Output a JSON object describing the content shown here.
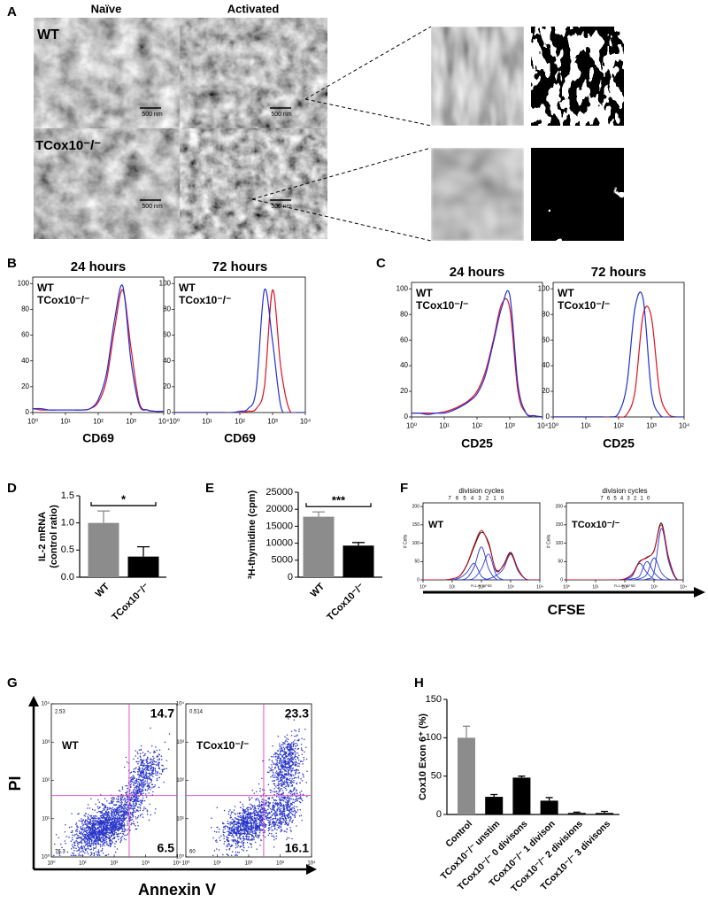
{
  "panel_labels": [
    "A",
    "B",
    "C",
    "D",
    "E",
    "F",
    "G",
    "H"
  ],
  "figure_a": {
    "columns": [
      "Naïve",
      "Activated"
    ],
    "rows": [
      "WT",
      "TCox10⁻/⁻"
    ],
    "scale_bars": [
      "500 nm",
      "500 nm",
      "500 nm",
      "500 nm"
    ]
  },
  "figure_f": {
    "xlabel": "CFSE"
  },
  "figure_g": {
    "xlabel": "Annexin V",
    "ylabel": "PI"
  },
  "chart_data": [
    {
      "type": "line",
      "xscale": "log",
      "title": "24 hours",
      "xlabel": "CD69",
      "legend": "top-left",
      "x": [
        1,
        1.78,
        3.16,
        5.62,
        10,
        17.8,
        31.6,
        56.2,
        100,
        178,
        316,
        562,
        1000,
        1780,
        3160,
        5620,
        10000
      ],
      "series": [
        {
          "name": "WT",
          "color": "#e0101e",
          "values": [
            3,
            2,
            2,
            2,
            2,
            2,
            2,
            3,
            8,
            25,
            65,
            95,
            50,
            8,
            2,
            1,
            1
          ]
        },
        {
          "name": "TCox10⁻/⁻",
          "color": "#2030d8",
          "values": [
            3,
            3,
            2,
            2,
            2,
            2,
            2,
            3,
            10,
            30,
            72,
            98,
            40,
            6,
            2,
            1,
            1
          ]
        }
      ],
      "xlim": [
        1,
        10000
      ],
      "ylim": [
        0,
        105
      ],
      "yticks": [
        0,
        20,
        40,
        60,
        80,
        100
      ],
      "xticks": [
        {
          "value": 1,
          "label": "10⁰"
        },
        {
          "value": 10,
          "label": "10¹"
        },
        {
          "value": 100,
          "label": "10²"
        },
        {
          "value": 1000,
          "label": "10³"
        },
        {
          "value": 10000,
          "label": "10⁴"
        }
      ]
    },
    {
      "type": "line",
      "xscale": "log",
      "title": "72 hours",
      "xlabel": "CD69",
      "legend": "top-left",
      "x": [
        1,
        1.78,
        3.16,
        5.62,
        10,
        17.8,
        31.6,
        56.2,
        100,
        178,
        316,
        562,
        1000,
        1780,
        3160,
        5620,
        10000
      ],
      "series": [
        {
          "name": "WT",
          "color": "#e0101e",
          "values": [
            0,
            0,
            0,
            0,
            0,
            0,
            0,
            0,
            0,
            1,
            3,
            20,
            95,
            35,
            3,
            0,
            0
          ]
        },
        {
          "name": "TCox10⁻/⁻",
          "color": "#2030d8",
          "values": [
            0,
            0,
            0,
            0,
            0,
            0,
            0,
            0,
            1,
            3,
            18,
            95,
            55,
            5,
            0,
            0,
            0
          ]
        }
      ],
      "xlim": [
        1,
        10000
      ],
      "ylim": [
        0,
        105
      ],
      "yticks": [
        0,
        20,
        40,
        60,
        80,
        100
      ],
      "xticks": [
        {
          "value": 1,
          "label": "10⁰"
        },
        {
          "value": 10,
          "label": "10¹"
        },
        {
          "value": 100,
          "label": "10²"
        },
        {
          "value": 1000,
          "label": "10³"
        },
        {
          "value": 10000,
          "label": "10⁴"
        }
      ]
    },
    {
      "type": "line",
      "xscale": "log",
      "title": "24 hours",
      "xlabel": "CD25",
      "legend": "top-left",
      "x": [
        1,
        1.78,
        3.16,
        5.62,
        10,
        17.8,
        31.6,
        56.2,
        100,
        178,
        316,
        562,
        1000,
        1780,
        3160,
        5620,
        10000
      ],
      "series": [
        {
          "name": "WT",
          "color": "#e0101e",
          "values": [
            3,
            3,
            3,
            3,
            4,
            6,
            9,
            13,
            20,
            35,
            60,
            88,
            85,
            20,
            3,
            1,
            0
          ]
        },
        {
          "name": "TCox10⁻/⁻",
          "color": "#2030d8",
          "values": [
            3,
            3,
            2,
            3,
            3,
            5,
            8,
            12,
            18,
            32,
            58,
            85,
            95,
            25,
            3,
            1,
            0
          ]
        }
      ],
      "xlim": [
        1,
        10000
      ],
      "ylim": [
        0,
        105
      ],
      "yticks": [
        0,
        20,
        40,
        60,
        80,
        100
      ],
      "xticks": [
        {
          "value": 1,
          "label": "10⁰"
        },
        {
          "value": 10,
          "label": "10¹"
        },
        {
          "value": 100,
          "label": "10²"
        },
        {
          "value": 1000,
          "label": "10³"
        },
        {
          "value": 10000,
          "label": "10⁴"
        }
      ]
    },
    {
      "type": "line",
      "xscale": "log",
      "title": "72 hours",
      "xlabel": "CD25",
      "legend": "top-left",
      "x": [
        1,
        1.78,
        3.16,
        5.62,
        10,
        17.8,
        31.6,
        56.2,
        100,
        178,
        316,
        562,
        1000,
        1780,
        3160,
        5620,
        10000
      ],
      "series": [
        {
          "name": "WT",
          "color": "#e0101e",
          "values": [
            0,
            0,
            0,
            0,
            0,
            0,
            0,
            0,
            0,
            2,
            20,
            80,
            78,
            20,
            3,
            0,
            0
          ]
        },
        {
          "name": "TCox10⁻/⁻",
          "color": "#2030d8",
          "values": [
            0,
            0,
            0,
            0,
            0,
            0,
            0,
            0,
            3,
            25,
            85,
            92,
            20,
            2,
            0,
            0,
            0
          ]
        }
      ],
      "xlim": [
        1,
        10000
      ],
      "ylim": [
        0,
        105
      ],
      "yticks": [
        0,
        20,
        40,
        60,
        80,
        100
      ],
      "xticks": [
        {
          "value": 1,
          "label": "10⁰"
        },
        {
          "value": 10,
          "label": "10¹"
        },
        {
          "value": 100,
          "label": "10²"
        },
        {
          "value": 1000,
          "label": "10³"
        },
        {
          "value": 10000,
          "label": "10⁴"
        }
      ]
    },
    {
      "type": "bar",
      "ylabel": [
        "IL-2 mRNA",
        "(control ratio)"
      ],
      "categories": [
        "WT",
        "TCox10⁻/⁻"
      ],
      "values": [
        1.0,
        0.38
      ],
      "errors": [
        0.22,
        0.18
      ],
      "colors": [
        "#8c8c8c",
        "#000000"
      ],
      "significance": "*",
      "ylim": [
        0,
        1.5
      ],
      "yticks": [
        {
          "value": 0,
          "label": "0.0"
        },
        {
          "value": 0.5,
          "label": "0.5"
        },
        {
          "value": 1,
          "label": "1.0"
        },
        {
          "value": 1.5,
          "label": "1.5"
        }
      ]
    },
    {
      "type": "bar",
      "ylabel": [
        "³H-thymidine (cpm)"
      ],
      "categories": [
        "WT",
        "TCox10⁻/⁻"
      ],
      "values": [
        17800,
        9300
      ],
      "errors": [
        1400,
        900
      ],
      "colors": [
        "#8c8c8c",
        "#000000"
      ],
      "significance": "***",
      "ylim": [
        0,
        25000
      ],
      "yticks": [
        0,
        5000,
        10000,
        15000,
        20000,
        25000
      ]
    },
    {
      "type": "line",
      "xscale": "log",
      "title": "division cycles",
      "label": "WT",
      "ylabel": "# Cells",
      "xlabel": "FL1-H: CFSE",
      "division_labels": [
        "7",
        "6",
        "5",
        "4",
        "3",
        "2",
        "1",
        "0"
      ],
      "x": [
        1,
        1.78,
        3.16,
        5.62,
        10,
        17.8,
        31.6,
        56.2,
        100,
        178,
        316,
        562,
        1000,
        1780,
        3160,
        5620,
        10000
      ],
      "series": [
        {
          "color": "#2a3ad8",
          "values": [
            0,
            0,
            0,
            0,
            0,
            5,
            20,
            45,
            10,
            0,
            0,
            0,
            0,
            0,
            0,
            0,
            0
          ]
        },
        {
          "color": "#2a3ad8",
          "values": [
            0,
            0,
            0,
            0,
            0,
            0,
            5,
            35,
            90,
            30,
            2,
            0,
            0,
            0,
            0,
            0,
            0
          ]
        },
        {
          "color": "#2a3ad8",
          "values": [
            0,
            0,
            0,
            0,
            0,
            0,
            0,
            5,
            30,
            70,
            15,
            0,
            0,
            0,
            0,
            0,
            0
          ]
        },
        {
          "color": "#2a3ad8",
          "values": [
            0,
            0,
            0,
            0,
            0,
            0,
            0,
            0,
            0,
            3,
            12,
            30,
            70,
            25,
            3,
            0,
            0
          ]
        },
        {
          "color": "#000000",
          "values": [
            0,
            0,
            0,
            0,
            3,
            10,
            40,
            90,
            130,
            100,
            25,
            40,
            75,
            30,
            3,
            0,
            0
          ]
        },
        {
          "color": "#e0101e",
          "values": [
            0,
            0,
            0,
            0,
            3,
            11,
            42,
            95,
            135,
            95,
            28,
            38,
            72,
            28,
            3,
            0,
            0
          ]
        }
      ],
      "xlim": [
        1,
        10000
      ],
      "ylim": [
        0,
        210
      ],
      "yticks": [
        0,
        50,
        100,
        150,
        200
      ],
      "xticks": [
        {
          "value": 1,
          "label": "10⁰"
        },
        {
          "value": 10,
          "label": "10¹"
        },
        {
          "value": 100,
          "label": "10²"
        },
        {
          "value": 1000,
          "label": "10³"
        },
        {
          "value": 10000,
          "label": "10⁴"
        }
      ]
    },
    {
      "type": "line",
      "xscale": "log",
      "title": "division cycles",
      "label": "TCox10⁻/⁻",
      "ylabel": "# Cells",
      "xlabel": "FL1-H: CFSE",
      "division_labels": [
        "7",
        "6",
        "5",
        "4",
        "3",
        "2",
        "1",
        "0"
      ],
      "x": [
        1,
        1.78,
        3.16,
        5.62,
        10,
        17.8,
        31.6,
        56.2,
        100,
        178,
        316,
        562,
        1000,
        1780,
        3160,
        5620,
        10000
      ],
      "series": [
        {
          "color": "#2a3ad8",
          "values": [
            0,
            0,
            0,
            0,
            0,
            0,
            0,
            0,
            2,
            10,
            45,
            20,
            2,
            0,
            0,
            0,
            0
          ]
        },
        {
          "color": "#2a3ad8",
          "values": [
            0,
            0,
            0,
            0,
            0,
            0,
            0,
            0,
            0,
            3,
            10,
            50,
            20,
            2,
            0,
            0,
            0
          ]
        },
        {
          "color": "#2a3ad8",
          "values": [
            0,
            0,
            0,
            0,
            0,
            0,
            0,
            0,
            0,
            0,
            3,
            15,
            60,
            20,
            2,
            0,
            0
          ]
        },
        {
          "color": "#2a3ad8",
          "values": [
            0,
            0,
            0,
            0,
            0,
            0,
            0,
            0,
            0,
            0,
            0,
            2,
            20,
            140,
            50,
            3,
            0
          ]
        },
        {
          "color": "#000000",
          "values": [
            0,
            0,
            0,
            0,
            0,
            0,
            0,
            0,
            3,
            15,
            50,
            60,
            80,
            155,
            60,
            5,
            0
          ]
        },
        {
          "color": "#e0101e",
          "values": [
            0,
            0,
            0,
            0,
            0,
            0,
            0,
            0,
            3,
            16,
            48,
            62,
            78,
            150,
            62,
            5,
            0
          ]
        }
      ],
      "xlim": [
        1,
        10000
      ],
      "ylim": [
        0,
        210
      ],
      "yticks": [
        0,
        50,
        100,
        150,
        200
      ],
      "xticks": [
        {
          "value": 1,
          "label": "10⁰"
        },
        {
          "value": 10,
          "label": "10¹"
        },
        {
          "value": 100,
          "label": "10²"
        },
        {
          "value": 1000,
          "label": "10³"
        },
        {
          "value": 10000,
          "label": "10⁴"
        }
      ]
    },
    {
      "type": "scatter",
      "label": "WT",
      "quadrant_values": [
        2.53,
        14.7,
        76.3,
        6.5
      ],
      "gate_x": 300,
      "gate_y": 40,
      "color": "#2a36c8",
      "gate_color": "#e040c0",
      "xlim": [
        1,
        10000
      ],
      "ylim": [
        1,
        10000
      ],
      "xticks": [
        {
          "value": 1,
          "label": "10⁰"
        },
        {
          "value": 10,
          "label": "10¹"
        },
        {
          "value": 100,
          "label": "10²"
        },
        {
          "value": 1000,
          "label": "10³"
        },
        {
          "value": 10000,
          "label": "10⁴"
        }
      ],
      "yticks": [
        {
          "value": 1,
          "label": "10⁰"
        },
        {
          "value": 10,
          "label": "10¹"
        },
        {
          "value": 100,
          "label": "10²"
        },
        {
          "value": 1000,
          "label": "10³"
        },
        {
          "value": 10000,
          "label": "10⁴"
        }
      ]
    },
    {
      "type": "scatter",
      "label": "TCox10⁻/⁻",
      "quadrant_values": [
        0.514,
        23.3,
        60,
        16.1
      ],
      "gate_x": 300,
      "gate_y": 40,
      "color": "#2a36c8",
      "gate_color": "#e040c0",
      "xlim": [
        1,
        10000
      ],
      "ylim": [
        1,
        10000
      ],
      "xticks": [
        {
          "value": 1,
          "label": "10⁰"
        },
        {
          "value": 10,
          "label": "10¹"
        },
        {
          "value": 100,
          "label": "10²"
        },
        {
          "value": 1000,
          "label": "10³"
        },
        {
          "value": 10000,
          "label": "10⁴"
        }
      ],
      "yticks": [
        {
          "value": 1,
          "label": "10⁰"
        },
        {
          "value": 10,
          "label": "10¹"
        },
        {
          "value": 100,
          "label": "10²"
        },
        {
          "value": 1000,
          "label": "10³"
        },
        {
          "value": 10000,
          "label": "10⁴"
        }
      ]
    },
    {
      "type": "bar",
      "ylabel": [
        "Cox10 Exon 6⁺ (%)"
      ],
      "categories": [
        "Control",
        "TCox10⁻/⁻ unstim",
        "TCox10⁻/⁻ 0 divisons",
        "TCox10⁻/⁻ 1 divison",
        "TCox10⁻/⁻ 2 divisions",
        "TCox10⁻/⁻ 3 divisons"
      ],
      "values": [
        100,
        23,
        48,
        18,
        2,
        2
      ],
      "errors": [
        15,
        3,
        2,
        4,
        1,
        2
      ],
      "colors": [
        "#8c8c8c",
        "#000000",
        "#000000",
        "#000000",
        "#000000",
        "#000000"
      ],
      "ylim": [
        0,
        150
      ],
      "yticks": [
        0,
        50,
        100,
        150
      ]
    }
  ]
}
